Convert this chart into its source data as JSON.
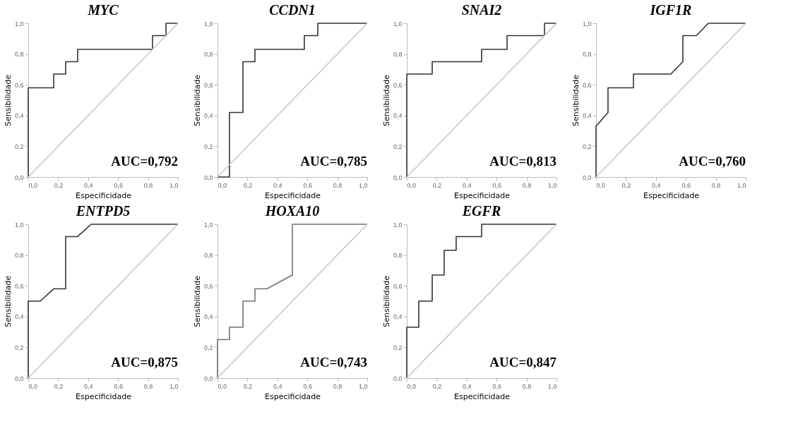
{
  "chart_data": [
    {
      "type": "line",
      "title": "MYC",
      "xlabel": "Especificidade",
      "ylabel": "Sensibilidade",
      "annotations": [
        "AUC=0,792"
      ],
      "xlim": [
        0,
        1
      ],
      "ylim": [
        0,
        1
      ],
      "xticks": [
        {
          "value": 0,
          "label": "0,0"
        },
        {
          "value": 0.2,
          "label": "0,2"
        },
        {
          "value": 0.4,
          "label": "0,4"
        },
        {
          "value": 0.6,
          "label": "0,6"
        },
        {
          "value": 0.8,
          "label": "0,8"
        },
        {
          "value": 1,
          "label": "1,0"
        }
      ],
      "yticks": [
        {
          "value": 0,
          "label": "0,0"
        },
        {
          "value": 0.2,
          "label": "0,2"
        },
        {
          "value": 0.4,
          "label": "0,4"
        },
        {
          "value": 0.6,
          "label": "0,6"
        },
        {
          "value": 0.8,
          "label": "0,8"
        },
        {
          "value": 1,
          "label": "1,0"
        }
      ],
      "grid": false,
      "series": [
        {
          "color": "#333333",
          "x": [
            0,
            0,
            0.17,
            0.17,
            0.25,
            0.25,
            0.33,
            0.33,
            0.83,
            0.83,
            0.92,
            0.92,
            1
          ],
          "values": [
            0,
            0.58,
            0.58,
            0.67,
            0.67,
            0.75,
            0.75,
            0.83,
            0.83,
            0.92,
            0.92,
            1,
            1
          ]
        },
        {
          "color": "#c8c8c8",
          "x": [
            0,
            1
          ],
          "values": [
            0,
            1
          ]
        }
      ]
    },
    {
      "type": "line",
      "title": "CCDN1",
      "xlabel": "Especificidade",
      "ylabel": "Sensibilidade",
      "annotations": [
        "AUC=0,785"
      ],
      "xlim": [
        0,
        1
      ],
      "ylim": [
        0,
        1
      ],
      "xticks": [
        {
          "value": 0,
          "label": "0,0"
        },
        {
          "value": 0.2,
          "label": "0,2"
        },
        {
          "value": 0.4,
          "label": "0,4"
        },
        {
          "value": 0.6,
          "label": "0,6"
        },
        {
          "value": 0.8,
          "label": "0,8"
        },
        {
          "value": 1,
          "label": "1,0"
        }
      ],
      "yticks": [
        {
          "value": 0,
          "label": "0,0"
        },
        {
          "value": 0.2,
          "label": "0,2"
        },
        {
          "value": 0.4,
          "label": "0,4"
        },
        {
          "value": 0.6,
          "label": "0,6"
        },
        {
          "value": 0.8,
          "label": "0,8"
        },
        {
          "value": 1,
          "label": "1,0"
        }
      ],
      "grid": false,
      "series": [
        {
          "color": "#333333",
          "x": [
            0,
            0.08,
            0.08,
            0.17,
            0.17,
            0.25,
            0.25,
            0.58,
            0.58,
            0.67,
            0.67,
            1
          ],
          "values": [
            0,
            0,
            0.42,
            0.42,
            0.75,
            0.75,
            0.83,
            0.83,
            0.92,
            0.92,
            1,
            1
          ]
        },
        {
          "color": "#c8c8c8",
          "x": [
            0,
            1
          ],
          "values": [
            0,
            1
          ]
        }
      ]
    },
    {
      "type": "line",
      "title": "SNAI2",
      "xlabel": "Especificidade",
      "ylabel": "Sensibilidade",
      "annotations": [
        "AUC=0,813"
      ],
      "xlim": [
        0,
        1
      ],
      "ylim": [
        0,
        1
      ],
      "xticks": [
        {
          "value": 0,
          "label": "0,0"
        },
        {
          "value": 0.2,
          "label": "0,2"
        },
        {
          "value": 0.4,
          "label": "0,4"
        },
        {
          "value": 0.6,
          "label": "0,6"
        },
        {
          "value": 0.8,
          "label": "0,8"
        },
        {
          "value": 1,
          "label": "1,0"
        }
      ],
      "yticks": [
        {
          "value": 0,
          "label": "0,0"
        },
        {
          "value": 0.2,
          "label": "0,2"
        },
        {
          "value": 0.4,
          "label": "0,4"
        },
        {
          "value": 0.6,
          "label": "0,6"
        },
        {
          "value": 0.8,
          "label": "0,8"
        },
        {
          "value": 1,
          "label": "1,0"
        }
      ],
      "grid": false,
      "series": [
        {
          "color": "#333333",
          "x": [
            0,
            0,
            0.17,
            0.17,
            0.5,
            0.5,
            0.67,
            0.67,
            0.92,
            0.92,
            1
          ],
          "values": [
            0,
            0.67,
            0.67,
            0.75,
            0.75,
            0.83,
            0.83,
            0.92,
            0.92,
            1,
            1
          ]
        },
        {
          "color": "#c8c8c8",
          "x": [
            0,
            1
          ],
          "values": [
            0,
            1
          ]
        }
      ]
    },
    {
      "type": "line",
      "title": "IGF1R",
      "xlabel": "Especificidade",
      "ylabel": "Sensibilidade",
      "annotations": [
        "AUC=0,760"
      ],
      "xlim": [
        0,
        1
      ],
      "ylim": [
        0,
        1
      ],
      "xticks": [
        {
          "value": 0,
          "label": "0,0"
        },
        {
          "value": 0.2,
          "label": "0,2"
        },
        {
          "value": 0.4,
          "label": "0,4"
        },
        {
          "value": 0.6,
          "label": "0,6"
        },
        {
          "value": 0.8,
          "label": "0,8"
        },
        {
          "value": 1,
          "label": "1,0"
        }
      ],
      "yticks": [
        {
          "value": 0,
          "label": "0,0"
        },
        {
          "value": 0.2,
          "label": "0,2"
        },
        {
          "value": 0.4,
          "label": "0,4"
        },
        {
          "value": 0.6,
          "label": "0,6"
        },
        {
          "value": 0.8,
          "label": "0,8"
        },
        {
          "value": 1,
          "label": "1,0"
        }
      ],
      "grid": false,
      "series": [
        {
          "color": "#333333",
          "x": [
            0,
            0,
            0.08,
            0.08,
            0.25,
            0.25,
            0.5,
            0.58,
            0.58,
            0.67,
            0.75,
            1
          ],
          "values": [
            0,
            0.33,
            0.42,
            0.58,
            0.58,
            0.67,
            0.67,
            0.75,
            0.92,
            0.92,
            1,
            1
          ]
        },
        {
          "color": "#c8c8c8",
          "x": [
            0,
            1
          ],
          "values": [
            0,
            1
          ]
        }
      ]
    },
    {
      "type": "line",
      "title": "ENTPD5",
      "xlabel": "Especificidade",
      "ylabel": "Sensibilidade",
      "annotations": [
        "AUC=0,875"
      ],
      "xlim": [
        0,
        1
      ],
      "ylim": [
        0,
        1
      ],
      "xticks": [
        {
          "value": 0,
          "label": "0,0"
        },
        {
          "value": 0.2,
          "label": "0,2"
        },
        {
          "value": 0.4,
          "label": "0,4"
        },
        {
          "value": 0.6,
          "label": "0,6"
        },
        {
          "value": 0.8,
          "label": "0,8"
        },
        {
          "value": 1,
          "label": "1,0"
        }
      ],
      "yticks": [
        {
          "value": 0,
          "label": "0,0"
        },
        {
          "value": 0.2,
          "label": "0,2"
        },
        {
          "value": 0.4,
          "label": "0,4"
        },
        {
          "value": 0.6,
          "label": "0,6"
        },
        {
          "value": 0.8,
          "label": "0,8"
        },
        {
          "value": 1,
          "label": "1,0"
        }
      ],
      "grid": false,
      "series": [
        {
          "color": "#333333",
          "x": [
            0,
            0,
            0.08,
            0.17,
            0.25,
            0.25,
            0.33,
            0.42,
            1
          ],
          "values": [
            0,
            0.5,
            0.5,
            0.58,
            0.58,
            0.92,
            0.92,
            1,
            1
          ]
        },
        {
          "color": "#c8c8c8",
          "x": [
            0,
            1
          ],
          "values": [
            0,
            1
          ]
        }
      ]
    },
    {
      "type": "line",
      "title": "HOXA10",
      "xlabel": "Especificidade",
      "ylabel": "Sensibilidade",
      "annotations": [
        "AUC=0,743"
      ],
      "xlim": [
        0,
        1
      ],
      "ylim": [
        0,
        1
      ],
      "xticks": [
        {
          "value": 0,
          "label": "0,0"
        },
        {
          "value": 0.2,
          "label": "0,2"
        },
        {
          "value": 0.4,
          "label": "0,4"
        },
        {
          "value": 0.6,
          "label": "0,6"
        },
        {
          "value": 0.8,
          "label": "0,8"
        },
        {
          "value": 1,
          "label": "1,0"
        }
      ],
      "yticks": [
        {
          "value": 0,
          "label": "0,0"
        },
        {
          "value": 0.2,
          "label": "0,2"
        },
        {
          "value": 0.4,
          "label": "0,4"
        },
        {
          "value": 0.6,
          "label": "0,6"
        },
        {
          "value": 0.8,
          "label": "0,8"
        },
        {
          "value": 1,
          "label": "1,0"
        }
      ],
      "grid": false,
      "series": [
        {
          "color": "#707070",
          "x": [
            0,
            0,
            0.08,
            0.08,
            0.17,
            0.17,
            0.25,
            0.25,
            0.33,
            0.5,
            0.5,
            1
          ],
          "values": [
            0,
            0.25,
            0.25,
            0.33,
            0.33,
            0.5,
            0.5,
            0.58,
            0.58,
            0.67,
            1,
            1
          ]
        },
        {
          "color": "#c8c8c8",
          "x": [
            0,
            1
          ],
          "values": [
            0,
            1
          ]
        }
      ]
    },
    {
      "type": "line",
      "title": "EGFR",
      "xlabel": "Especificidade",
      "ylabel": "Sensibilidade",
      "annotations": [
        "AUC=0,847"
      ],
      "xlim": [
        0,
        1
      ],
      "ylim": [
        0,
        1
      ],
      "xticks": [
        {
          "value": 0,
          "label": "0,0"
        },
        {
          "value": 0.2,
          "label": "0,2"
        },
        {
          "value": 0.4,
          "label": "0,4"
        },
        {
          "value": 0.6,
          "label": "0,6"
        },
        {
          "value": 0.8,
          "label": "0,8"
        },
        {
          "value": 1,
          "label": "1,0"
        }
      ],
      "yticks": [
        {
          "value": 0,
          "label": "0,0"
        },
        {
          "value": 0.2,
          "label": "0,2"
        },
        {
          "value": 0.4,
          "label": "0,4"
        },
        {
          "value": 0.6,
          "label": "0,6"
        },
        {
          "value": 0.8,
          "label": "0,8"
        },
        {
          "value": 1,
          "label": "1,0"
        }
      ],
      "grid": false,
      "series": [
        {
          "color": "#333333",
          "x": [
            0,
            0,
            0.08,
            0.08,
            0.17,
            0.17,
            0.25,
            0.25,
            0.33,
            0.33,
            0.5,
            0.5,
            1
          ],
          "values": [
            0,
            0.33,
            0.33,
            0.5,
            0.5,
            0.67,
            0.67,
            0.83,
            0.83,
            0.92,
            0.92,
            1,
            1
          ]
        },
        {
          "color": "#c8c8c8",
          "x": [
            0,
            1
          ],
          "values": [
            0,
            1
          ]
        }
      ]
    }
  ]
}
